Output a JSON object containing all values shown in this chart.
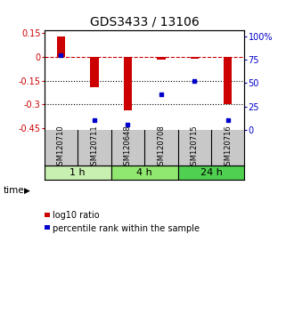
{
  "title": "GDS3433 / 13106",
  "samples": [
    "GSM120710",
    "GSM120711",
    "GSM120648",
    "GSM120708",
    "GSM120715",
    "GSM120716"
  ],
  "log10_ratio": [
    0.13,
    -0.19,
    -0.34,
    -0.015,
    -0.01,
    -0.3
  ],
  "percentile_rank": [
    80,
    10,
    5,
    38,
    52,
    10
  ],
  "groups": [
    {
      "label": "1 h",
      "indices": [
        0,
        1
      ],
      "color": "#c8f0b0"
    },
    {
      "label": "4 h",
      "indices": [
        2,
        3
      ],
      "color": "#90e870"
    },
    {
      "label": "24 h",
      "indices": [
        4,
        5
      ],
      "color": "#50d050"
    }
  ],
  "bar_color": "#cc0000",
  "dot_color": "#0000cc",
  "bar_width": 0.25,
  "ylim_left": [
    -0.46,
    0.17
  ],
  "ylim_right": [
    0,
    107
  ],
  "yticks_left": [
    0.15,
    0,
    -0.15,
    -0.3,
    -0.45
  ],
  "yticks_right": [
    100,
    75,
    50,
    25,
    0
  ],
  "right_tick_labels": [
    "100%",
    "75",
    "50",
    "25",
    "0"
  ],
  "hlines": [
    0,
    -0.15,
    -0.3
  ],
  "hline_styles": [
    "dashed",
    "dotted",
    "dotted"
  ],
  "hline_colors": [
    "#cc0000",
    "#000000",
    "#000000"
  ],
  "background_color": "#ffffff",
  "title_fontsize": 10,
  "tick_fontsize": 7,
  "sample_fontsize": 6,
  "label_fontsize": 8,
  "legend_fontsize": 7,
  "gray_bg": "#c8c8c8"
}
